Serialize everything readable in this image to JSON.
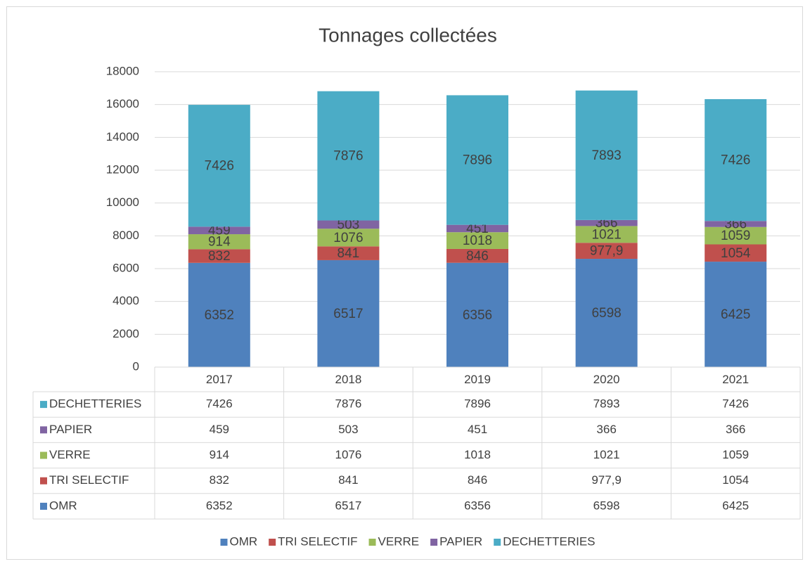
{
  "chart_data": {
    "type": "stacked_bar",
    "title": "Tonnages collectées",
    "categories": [
      "2017",
      "2018",
      "2019",
      "2020",
      "2021"
    ],
    "series": [
      {
        "name": "OMR",
        "color": "#4f81bd",
        "values": [
          6352,
          6517,
          6356,
          6598,
          6425
        ]
      },
      {
        "name": "TRI SELECTIF",
        "color": "#c0504d",
        "values": [
          832,
          841,
          846,
          977.9,
          1054
        ],
        "value_labels": [
          "832",
          "841",
          "846",
          "977,9",
          "1054"
        ]
      },
      {
        "name": "VERRE",
        "color": "#9bbb59",
        "values": [
          914,
          1076,
          1018,
          1021,
          1059
        ]
      },
      {
        "name": "PAPIER",
        "color": "#8064a2",
        "values": [
          459,
          503,
          451,
          366,
          366
        ]
      },
      {
        "name": "DECHETTERIES",
        "color": "#4bacc6",
        "values": [
          7426,
          7876,
          7896,
          7893,
          7426
        ]
      }
    ],
    "ylim": [
      0,
      18000
    ],
    "yticks": [
      0,
      2000,
      4000,
      6000,
      8000,
      10000,
      12000,
      14000,
      16000,
      18000
    ],
    "grid": true,
    "legend": "bottom",
    "data_table": true
  }
}
